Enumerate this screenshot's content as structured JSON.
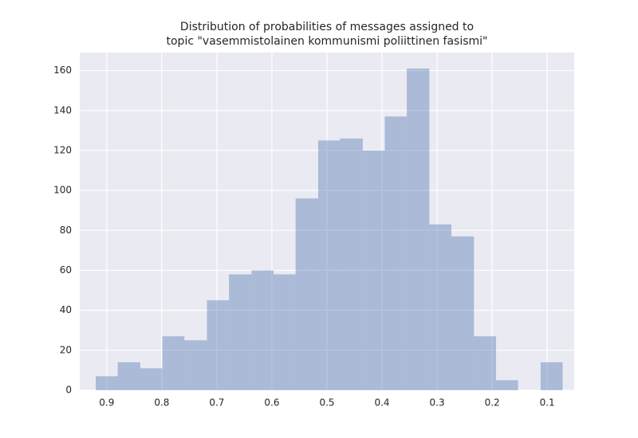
{
  "chart_data": {
    "type": "histogram",
    "title": [
      "Distribution of probabilities of messages assigned to",
      "topic \"vasemmistolainen kommunismi poliittinen fasismi\""
    ],
    "bins": [
      0.92,
      0.88,
      0.839,
      0.799,
      0.759,
      0.718,
      0.678,
      0.637,
      0.597,
      0.557,
      0.516,
      0.476,
      0.435,
      0.395,
      0.355,
      0.314,
      0.274,
      0.233,
      0.193,
      0.153,
      0.112,
      0.072
    ],
    "values": [
      7,
      14,
      11,
      27,
      25,
      45,
      58,
      60,
      58,
      96,
      125,
      126,
      120,
      137,
      161,
      83,
      77,
      27,
      5,
      0,
      14
    ],
    "color": "#4c72b0",
    "xlim": [
      0.949,
      0.051
    ],
    "xticks": [
      0.9,
      0.8,
      0.7,
      0.6,
      0.5,
      0.4,
      0.3,
      0.2,
      0.1
    ],
    "ylim": [
      0,
      169
    ],
    "yticks": [
      0,
      20,
      40,
      60,
      80,
      100,
      120,
      140,
      160
    ],
    "grid": true
  }
}
